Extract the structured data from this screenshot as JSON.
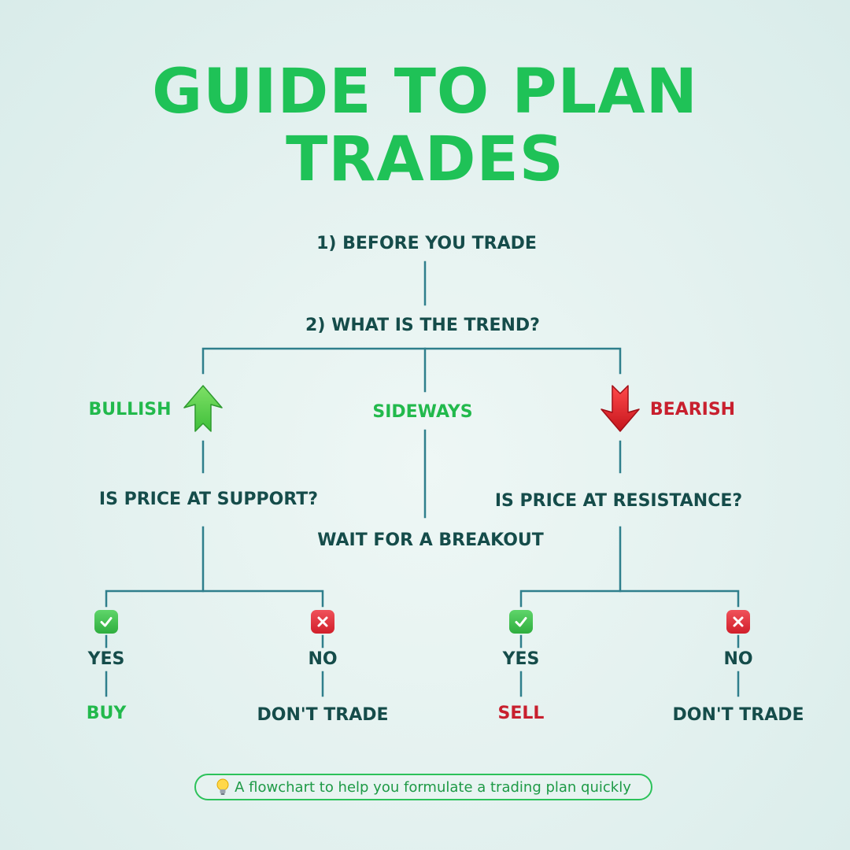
{
  "title": {
    "line1": "GUIDE TO PLAN",
    "line2": "TRADES"
  },
  "colors": {
    "title": "#1fc257",
    "line": "#2f7f8c",
    "text": "#154c4a",
    "bullish": "#22b94c",
    "bearish": "#c8202e"
  },
  "flow": {
    "step1": "1) BEFORE YOU TRADE",
    "step2": "2) WHAT IS THE TREND?",
    "bullish": {
      "label": "BULLISH",
      "icon": "up-arrow-icon",
      "question": "IS PRICE AT SUPPORT?",
      "yes": "YES",
      "no": "NO",
      "yes_action": "BUY",
      "no_action": "DON'T TRADE"
    },
    "sideways": {
      "label": "SIDEWAYS",
      "action": "WAIT FOR A BREAKOUT"
    },
    "bearish": {
      "label": "BEARISH",
      "icon": "down-arrow-icon",
      "question": "IS PRICE AT RESISTANCE?",
      "yes": "YES",
      "no": "NO",
      "yes_action": "SELL",
      "no_action": "DON'T TRADE"
    }
  },
  "footer": {
    "icon": "lightbulb-icon",
    "text": "A flowchart to help you formulate a trading plan quickly"
  }
}
